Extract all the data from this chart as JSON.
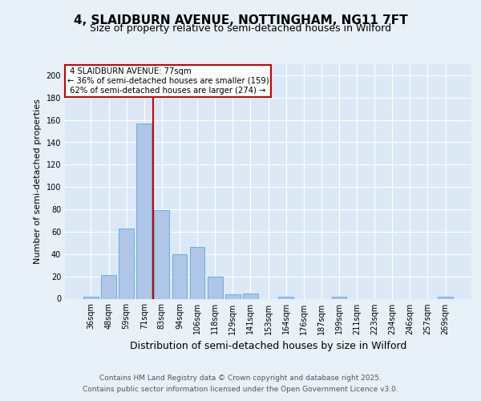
{
  "title_line1": "4, SLAIDBURN AVENUE, NOTTINGHAM, NG11 7FT",
  "title_line2": "Size of property relative to semi-detached houses in Wilford",
  "xlabel": "Distribution of semi-detached houses by size in Wilford",
  "ylabel": "Number of semi-detached properties",
  "footer_line1": "Contains HM Land Registry data © Crown copyright and database right 2025.",
  "footer_line2": "Contains public sector information licensed under the Open Government Licence v3.0.",
  "bar_labels": [
    "36sqm",
    "48sqm",
    "59sqm",
    "71sqm",
    "83sqm",
    "94sqm",
    "106sqm",
    "118sqm",
    "129sqm",
    "141sqm",
    "153sqm",
    "164sqm",
    "176sqm",
    "187sqm",
    "199sqm",
    "211sqm",
    "223sqm",
    "234sqm",
    "246sqm",
    "257sqm",
    "269sqm"
  ],
  "bar_values": [
    2,
    21,
    63,
    157,
    79,
    40,
    46,
    20,
    4,
    5,
    0,
    2,
    0,
    0,
    2,
    0,
    0,
    0,
    0,
    0,
    2
  ],
  "bar_color": "#aec6e8",
  "bar_edge_color": "#6aaed6",
  "property_sqm": 77,
  "property_label": "4 SLAIDBURN AVENUE: 77sqm",
  "pct_smaller": 36,
  "count_smaller": 159,
  "pct_larger": 62,
  "count_larger": 274,
  "annotation_box_color": "#cc0000",
  "vline_color": "#cc0000",
  "ylim": [
    0,
    210
  ],
  "yticks": [
    0,
    20,
    40,
    60,
    80,
    100,
    120,
    140,
    160,
    180,
    200
  ],
  "bg_color": "#e8f0f8",
  "plot_bg_color": "#dce8f5",
  "title_fontsize": 11,
  "subtitle_fontsize": 9,
  "ylabel_fontsize": 8,
  "xlabel_fontsize": 9,
  "footer_fontsize": 6.5,
  "tick_fontsize": 7
}
